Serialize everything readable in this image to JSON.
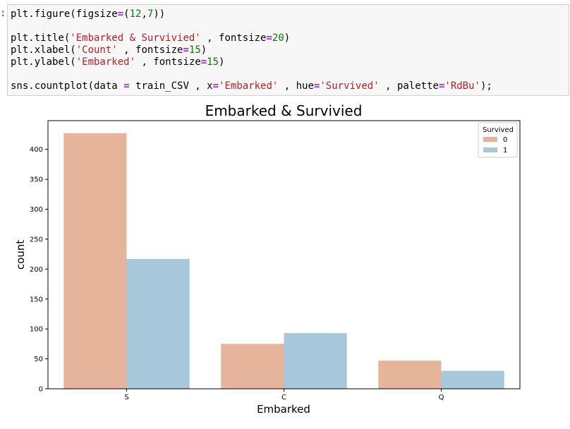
{
  "cell": {
    "prompt": ":",
    "code_lines": [
      [
        {
          "t": "plt.figure(figsize"
        },
        {
          "t": "=",
          "c": "o"
        },
        {
          "t": "("
        },
        {
          "t": "12",
          "c": "n"
        },
        {
          "t": ","
        },
        {
          "t": "7",
          "c": "n"
        },
        {
          "t": "))"
        }
      ],
      [],
      [
        {
          "t": "plt.title("
        },
        {
          "t": "'Embarked & Survivied'",
          "c": "s"
        },
        {
          "t": " , fontsize"
        },
        {
          "t": "=",
          "c": "o"
        },
        {
          "t": "20",
          "c": "n"
        },
        {
          "t": ")"
        }
      ],
      [
        {
          "t": "plt.xlabel("
        },
        {
          "t": "'Count'",
          "c": "s"
        },
        {
          "t": " , fontsize"
        },
        {
          "t": "=",
          "c": "o"
        },
        {
          "t": "15",
          "c": "n"
        },
        {
          "t": ")"
        }
      ],
      [
        {
          "t": "plt.ylabel("
        },
        {
          "t": "'Embarked'",
          "c": "s"
        },
        {
          "t": " , fontsize"
        },
        {
          "t": "=",
          "c": "o"
        },
        {
          "t": "15",
          "c": "n"
        },
        {
          "t": ")"
        }
      ],
      [],
      [
        {
          "t": "sns.countplot(data "
        },
        {
          "t": "=",
          "c": "o"
        },
        {
          "t": " train_CSV , x"
        },
        {
          "t": "=",
          "c": "o"
        },
        {
          "t": "'Embarked'",
          "c": "s"
        },
        {
          "t": " , hue"
        },
        {
          "t": "=",
          "c": "o"
        },
        {
          "t": "'Survived'",
          "c": "s"
        },
        {
          "t": " , palette"
        },
        {
          "t": "=",
          "c": "o"
        },
        {
          "t": "'RdBu'",
          "c": "s"
        },
        {
          "t": ");"
        }
      ]
    ]
  },
  "chart_data": {
    "type": "bar",
    "title": "Embarked & Survivied",
    "xlabel": "Embarked",
    "ylabel": "count",
    "categories": [
      "S",
      "C",
      "Q"
    ],
    "series": [
      {
        "name": "0",
        "values": [
          427,
          75,
          47
        ],
        "color": "#e6b49b"
      },
      {
        "name": "1",
        "values": [
          217,
          93,
          30
        ],
        "color": "#a6c8da"
      }
    ],
    "ylim": [
      0,
      448
    ],
    "yticks": [
      0,
      50,
      100,
      150,
      200,
      250,
      300,
      350,
      400
    ],
    "legend": {
      "title": "Survived",
      "position": "top-right"
    },
    "grid": false
  }
}
